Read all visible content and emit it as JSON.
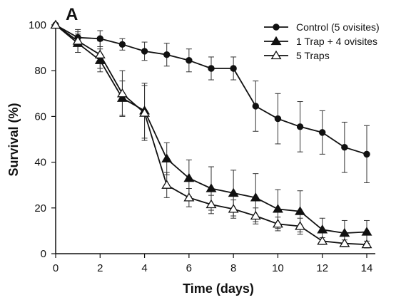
{
  "panel_label": "A",
  "chart_data": {
    "type": "line",
    "xlabel": "Time (days)",
    "ylabel": "Survival (%)",
    "xlim": [
      0,
      14
    ],
    "ylim": [
      0,
      100
    ],
    "x_ticks": [
      0,
      2,
      4,
      6,
      8,
      10,
      12,
      14
    ],
    "y_ticks": [
      0,
      20,
      40,
      60,
      80,
      100
    ],
    "grid": false,
    "legend_position": "top-right",
    "x": [
      0,
      1,
      2,
      3,
      4,
      5,
      6,
      7,
      8,
      9,
      10,
      11,
      12,
      13,
      14
    ],
    "series": [
      {
        "name": "Control (5 ovisites)",
        "marker": "circle-filled",
        "color": "#111111",
        "values": [
          100,
          94.5,
          94,
          91.5,
          88.5,
          87,
          84.5,
          81,
          81,
          64.5,
          59,
          55.5,
          53,
          46.5,
          43.5
        ],
        "errors": [
          0,
          2.5,
          3.5,
          2.5,
          4,
          5,
          5,
          5,
          5,
          11,
          11,
          11,
          9.5,
          11,
          12.5
        ]
      },
      {
        "name": "1 Trap + 4 ovisites",
        "marker": "triangle-filled",
        "color": "#111111",
        "values": [
          100,
          92,
          84.5,
          68,
          62.5,
          41.5,
          33,
          28.5,
          26.5,
          24.5,
          19.5,
          18.5,
          10.5,
          9,
          9.5
        ],
        "errors": [
          0,
          4,
          5,
          7.5,
          12,
          7,
          8,
          9.5,
          10,
          10.5,
          8.5,
          9,
          5,
          5.5,
          5
        ]
      },
      {
        "name": "5 Traps",
        "marker": "triangle-open",
        "color": "#111111",
        "values": [
          100,
          93,
          87,
          70,
          61.5,
          30,
          24.5,
          21.5,
          19.5,
          16.5,
          13,
          12,
          5.5,
          4.5,
          4
        ],
        "errors": [
          0,
          5,
          6,
          10,
          12,
          5.5,
          4,
          4,
          4,
          3.5,
          3,
          3.5,
          1.5,
          1.5,
          1.5
        ]
      }
    ]
  }
}
